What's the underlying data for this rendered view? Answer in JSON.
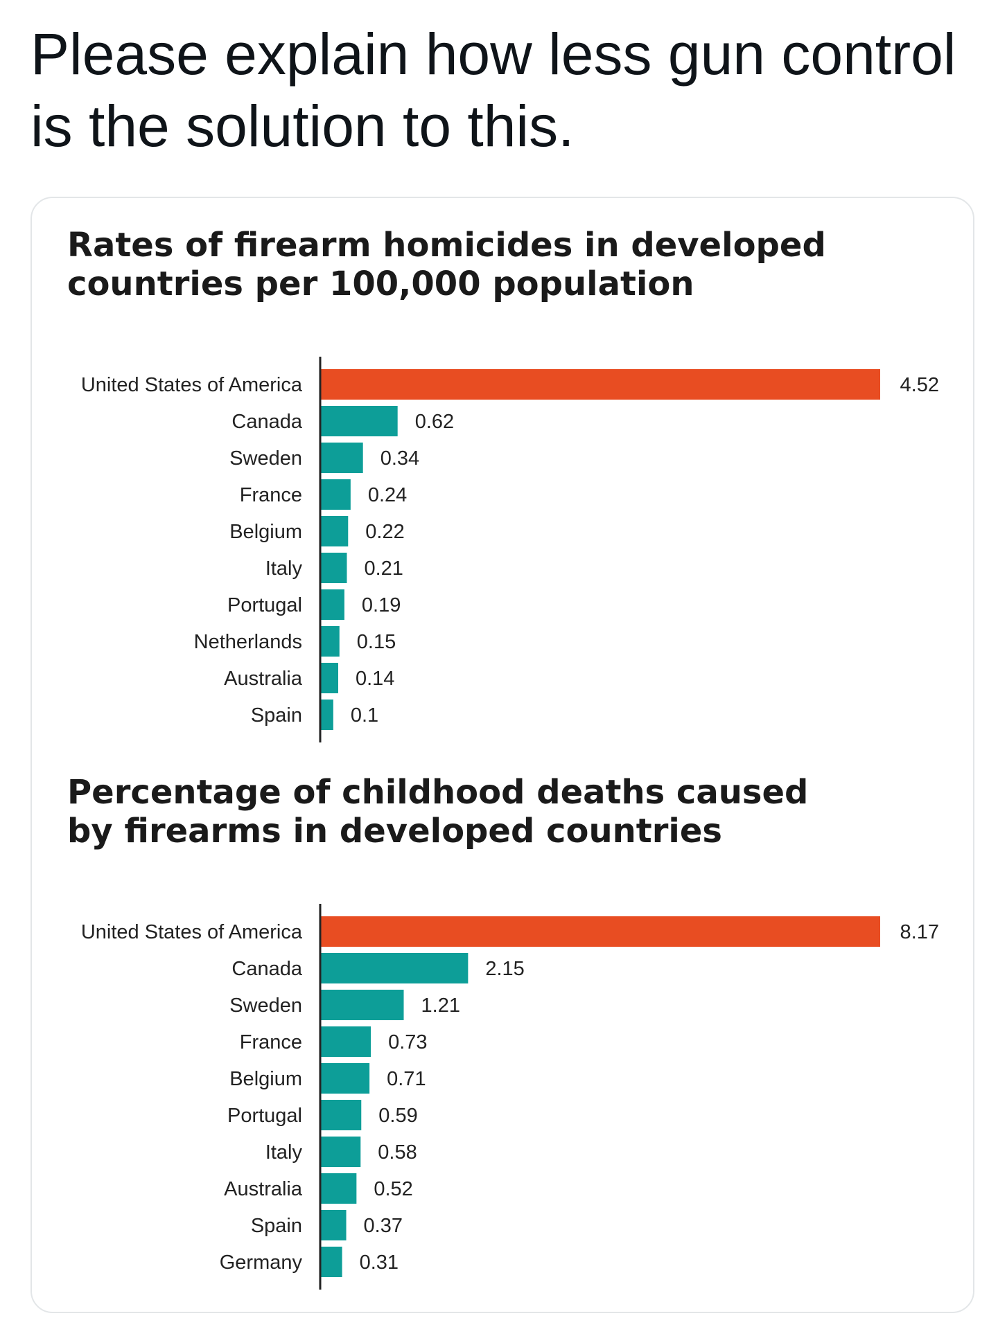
{
  "tweet": {
    "text_line1": "Please explain how less gun control",
    "text_line2": "is the solution to this."
  },
  "colors": {
    "highlight": "#e84d22",
    "bar": "#0d9e98",
    "axis": "#222222"
  },
  "chart_data": [
    {
      "type": "bar",
      "orientation": "horizontal",
      "title": "Rates of firearm homicides in developed countries per 100,000 population",
      "title_lines": [
        "Rates of firearm homicides in developed",
        "countries per 100,000 population"
      ],
      "categories": [
        "United States of America",
        "Canada",
        "Sweden",
        "France",
        "Belgium",
        "Italy",
        "Portugal",
        "Netherlands",
        "Australia",
        "Spain"
      ],
      "values": [
        4.52,
        0.62,
        0.34,
        0.24,
        0.22,
        0.21,
        0.19,
        0.15,
        0.14,
        0.1
      ],
      "value_labels": [
        "4.52",
        "0.62",
        "0.34",
        "0.24",
        "0.22",
        "0.21",
        "0.19",
        "0.15",
        "0.14",
        "0.1"
      ],
      "highlight_index": 0,
      "xlim": [
        0,
        4.52
      ],
      "grid": false,
      "xlabel": "",
      "ylabel": ""
    },
    {
      "type": "bar",
      "orientation": "horizontal",
      "title": "Percentage of childhood deaths caused by firearms in developed countries",
      "title_lines": [
        "Percentage of childhood deaths caused",
        "by firearms in developed countries"
      ],
      "categories": [
        "United States of America",
        "Canada",
        "Sweden",
        "France",
        "Belgium",
        "Portugal",
        "Italy",
        "Australia",
        "Spain",
        "Germany"
      ],
      "values": [
        8.17,
        2.15,
        1.21,
        0.73,
        0.71,
        0.59,
        0.58,
        0.52,
        0.37,
        0.31
      ],
      "value_labels": [
        "8.17",
        "2.15",
        "1.21",
        "0.73",
        "0.71",
        "0.59",
        "0.58",
        "0.52",
        "0.37",
        "0.31"
      ],
      "highlight_index": 0,
      "xlim": [
        0,
        8.17
      ],
      "grid": false,
      "xlabel": "",
      "ylabel": ""
    }
  ]
}
